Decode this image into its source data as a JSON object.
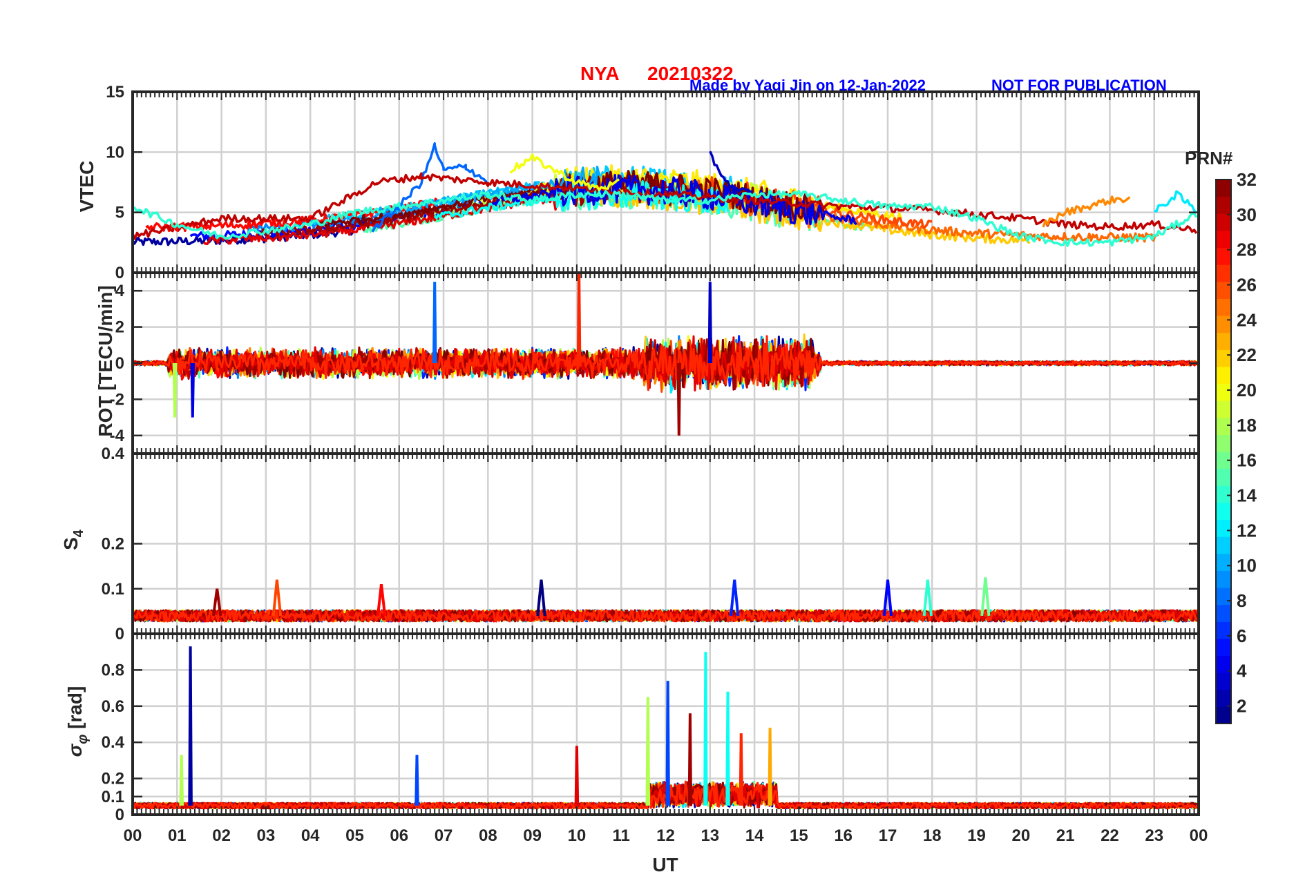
{
  "figure": {
    "title_station": "NYA",
    "title_date": "20210322",
    "credit": "Made by Yaqi Jin on 12-Jan-2022",
    "notice": "NOT FOR PUBLICATION",
    "title_color": "#ff0000",
    "credit_color": "#0000ff"
  },
  "colorbar": {
    "title": "PRN#",
    "ticks": [
      "2",
      "4",
      "6",
      "8",
      "10",
      "12",
      "14",
      "16",
      "18",
      "20",
      "22",
      "24",
      "26",
      "28",
      "30",
      "32"
    ],
    "range": [
      1,
      32
    ],
    "colormap": "jet"
  },
  "chart_data": [
    {
      "type": "line",
      "panel": "vtec",
      "ylabel": "VTEC",
      "ylim": [
        0,
        15
      ],
      "yticks": [
        "0",
        "5",
        "10",
        "15"
      ],
      "xlim": [
        0,
        24
      ],
      "xlabel": "",
      "grid": true,
      "series_note_values": "per-PRN VTEC 2–10 TECU; peak ~10.5 at 06.8 UT, broad maximum 6–8 TECU 08–15 UT",
      "series": [
        {
          "prn": 8,
          "x": [
            5.4,
            6.0,
            6.5,
            6.8,
            7.0,
            7.5,
            8.0
          ],
          "y": [
            3.5,
            5.5,
            7.5,
            10.5,
            8.5,
            8.8,
            7.5
          ]
        },
        {
          "prn": 30,
          "x": [
            0,
            2,
            4,
            5.5,
            6.5,
            8,
            10,
            12,
            14,
            16,
            18,
            20,
            21,
            22,
            23,
            24
          ],
          "y": [
            3,
            4.5,
            4.5,
            7.5,
            8,
            7.5,
            7,
            6.5,
            6,
            5.5,
            5.2,
            4.5,
            4,
            3.8,
            4,
            3.5
          ]
        },
        {
          "prn": 20,
          "x": [
            8.5,
            9,
            9.5,
            10,
            10.5,
            11
          ],
          "y": [
            8.5,
            9.5,
            8.5,
            7.5,
            7,
            7.5
          ]
        },
        {
          "prn": 3,
          "x": [
            13.0,
            13.2,
            13.5,
            14.0
          ],
          "y": [
            9.8,
            8.5,
            7,
            6.5
          ]
        },
        {
          "prn": 24,
          "x": [
            20.5,
            21,
            22,
            22.5
          ],
          "y": [
            4,
            5,
            6,
            6.2
          ]
        },
        {
          "prn": 12,
          "x": [
            23,
            23.5,
            24
          ],
          "y": [
            5,
            6.5,
            5
          ]
        },
        {
          "prn": 14,
          "x": [
            0,
            1,
            2,
            3,
            4,
            5,
            6,
            7,
            8,
            9,
            10,
            11,
            12,
            13,
            14,
            15,
            16,
            17,
            18,
            19,
            20,
            21,
            22,
            23,
            24
          ],
          "y": [
            5.5,
            4,
            3,
            3.5,
            4,
            5,
            5.5,
            6,
            6.5,
            6,
            6.5,
            6.5,
            6,
            6,
            6.5,
            6.5,
            6,
            5.5,
            5.5,
            4.5,
            3,
            2.5,
            2.5,
            3,
            5
          ]
        }
      ]
    },
    {
      "type": "line",
      "panel": "rot",
      "ylabel": "ROT [TECU/min]",
      "ylim": [
        -5,
        5
      ],
      "yticks": [
        "-4",
        "-2",
        "0",
        "2",
        "4"
      ],
      "xlim": [
        0,
        24
      ],
      "grid": true,
      "peaks": [
        {
          "prn": 27,
          "x": 10.05,
          "y": 5.0
        },
        {
          "prn": 3,
          "x": 13.0,
          "y": 4.5
        },
        {
          "prn": 8,
          "x": 6.8,
          "y": 4.5
        },
        {
          "prn": 31,
          "x": 12.3,
          "y": -4.0
        },
        {
          "prn": 18,
          "x": 0.95,
          "y": -3.0
        },
        {
          "prn": 4,
          "x": 1.35,
          "y": -3.0
        }
      ]
    },
    {
      "type": "line",
      "panel": "s4",
      "ylabel": "S4",
      "ylim": [
        0,
        0.4
      ],
      "yticks": [
        "0",
        "0.1",
        "0.2",
        "0.4"
      ],
      "xlim": [
        0,
        24
      ],
      "grid": true,
      "baseline": 0.04,
      "peaks": [
        {
          "prn": 1,
          "x": 9.2,
          "y": 0.12
        },
        {
          "prn": 26,
          "x": 3.25,
          "y": 0.12
        },
        {
          "prn": 28,
          "x": 5.6,
          "y": 0.11
        },
        {
          "prn": 6,
          "x": 13.55,
          "y": 0.12
        },
        {
          "prn": 5,
          "x": 17.0,
          "y": 0.12
        },
        {
          "prn": 14,
          "x": 17.9,
          "y": 0.12
        },
        {
          "prn": 16,
          "x": 19.2,
          "y": 0.125
        },
        {
          "prn": 31,
          "x": 1.9,
          "y": 0.1
        }
      ]
    },
    {
      "type": "line",
      "panel": "sigma_phi",
      "ylabel": "σφ [rad]",
      "ylim": [
        0,
        1.0
      ],
      "yticks": [
        "0",
        "0.1",
        "0.2",
        "0.4",
        "0.6",
        "0.8"
      ],
      "xlim": [
        0,
        24
      ],
      "grid": true,
      "baseline": 0.05,
      "peaks": [
        {
          "prn": 2,
          "x": 1.3,
          "y": 0.93
        },
        {
          "prn": 18,
          "x": 1.1,
          "y": 0.33
        },
        {
          "prn": 7,
          "x": 6.4,
          "y": 0.33
        },
        {
          "prn": 29,
          "x": 10.0,
          "y": 0.38
        },
        {
          "prn": 18,
          "x": 11.6,
          "y": 0.65
        },
        {
          "prn": 7,
          "x": 12.05,
          "y": 0.74
        },
        {
          "prn": 13,
          "x": 12.9,
          "y": 0.9
        },
        {
          "prn": 31,
          "x": 12.55,
          "y": 0.56
        },
        {
          "prn": 13,
          "x": 13.4,
          "y": 0.68
        },
        {
          "prn": 23,
          "x": 14.35,
          "y": 0.48
        },
        {
          "prn": 27,
          "x": 13.7,
          "y": 0.45
        }
      ]
    }
  ],
  "xaxis": {
    "label": "UT",
    "ticks": [
      "00",
      "01",
      "02",
      "03",
      "04",
      "05",
      "06",
      "07",
      "08",
      "09",
      "10",
      "11",
      "12",
      "13",
      "14",
      "15",
      "16",
      "17",
      "18",
      "19",
      "20",
      "21",
      "22",
      "23",
      "00"
    ]
  }
}
